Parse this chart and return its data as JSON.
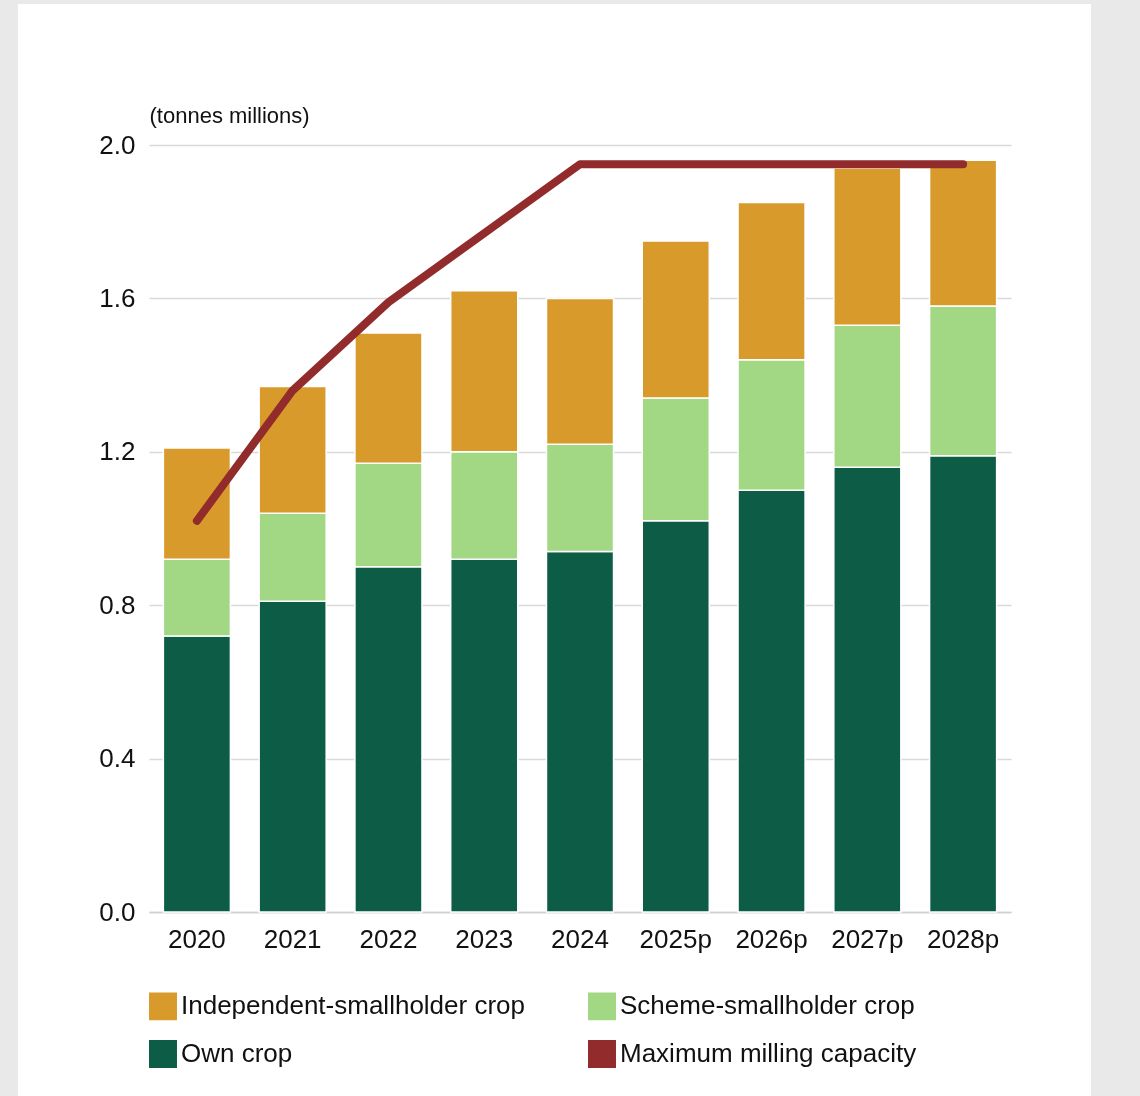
{
  "chart_data": {
    "type": "bar",
    "stacked": true,
    "ylabel": "(tonnes millions)",
    "categories": [
      "2020",
      "2021",
      "2022",
      "2023",
      "2024",
      "2025p",
      "2026p",
      "2027p",
      "2028p"
    ],
    "series": [
      {
        "name": "Own crop",
        "color": "#0d5c46",
        "values": [
          0.72,
          0.81,
          0.9,
          0.92,
          0.94,
          1.02,
          1.1,
          1.16,
          1.19
        ]
      },
      {
        "name": "Scheme-smallholder crop",
        "color": "#a2d884",
        "values": [
          0.2,
          0.23,
          0.27,
          0.28,
          0.28,
          0.32,
          0.34,
          0.37,
          0.39
        ]
      },
      {
        "name": "Independent-smallholder crop",
        "color": "#d99a2c",
        "values": [
          0.29,
          0.33,
          0.34,
          0.42,
          0.38,
          0.41,
          0.41,
          0.41,
          0.38
        ]
      },
      {
        "name": "Maximum milling capacity",
        "type": "line",
        "color": "#922b2b",
        "values": [
          1.02,
          1.36,
          1.59,
          1.77,
          1.95,
          1.95,
          1.95,
          1.95,
          1.95
        ]
      }
    ],
    "ylim": [
      0,
      2
    ],
    "yticks": [
      {
        "value": 0,
        "label": "0.0"
      },
      0.4,
      0.8,
      1.2,
      1.6,
      {
        "value": 2,
        "label": "2.0"
      }
    ],
    "grid": "y",
    "legend": "bottom"
  }
}
